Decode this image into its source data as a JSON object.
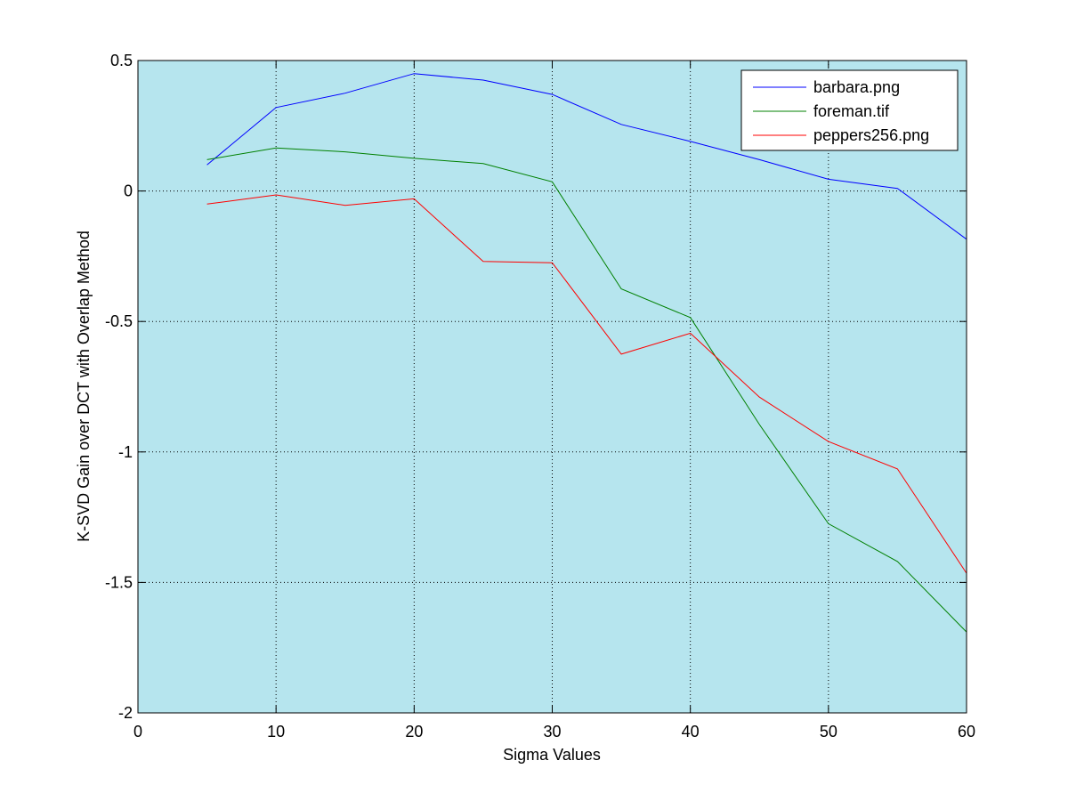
{
  "chart_data": {
    "type": "line",
    "title": "",
    "xlabel": "Sigma Values",
    "ylabel": "K-SVD Gain over DCT with Overlap Method",
    "xlim": [
      0,
      60
    ],
    "ylim": [
      -2,
      0.5
    ],
    "xticks": [
      0,
      10,
      20,
      30,
      40,
      50,
      60
    ],
    "yticks": [
      0.5,
      0,
      -0.5,
      -1,
      -1.5,
      -2
    ],
    "xtick_labels": [
      "0",
      "10",
      "20",
      "30",
      "40",
      "50",
      "60"
    ],
    "ytick_labels": [
      "0.5",
      "0",
      "-0.5",
      "-1",
      "-1.5",
      "-2"
    ],
    "grid": true,
    "legend_position": "top-right",
    "plot_background": "#b6e5ee",
    "x": [
      5,
      10,
      15,
      20,
      25,
      30,
      35,
      40,
      45,
      50,
      55,
      60
    ],
    "series": [
      {
        "name": "barbara.png",
        "color": "#0000ff",
        "values": [
          0.1,
          0.32,
          0.375,
          0.45,
          0.425,
          0.37,
          0.255,
          0.19,
          0.12,
          0.045,
          0.01,
          -0.185
        ]
      },
      {
        "name": "foreman.tif",
        "color": "#008000",
        "values": [
          0.12,
          0.165,
          0.15,
          0.125,
          0.105,
          0.035,
          -0.375,
          -0.485,
          -0.895,
          -1.275,
          -1.42,
          -1.69
        ]
      },
      {
        "name": "peppers256.png",
        "color": "#ff0000",
        "values": [
          -0.05,
          -0.015,
          -0.055,
          -0.03,
          -0.27,
          -0.275,
          -0.625,
          -0.545,
          -0.79,
          -0.96,
          -1.065,
          -1.465
        ]
      }
    ]
  }
}
